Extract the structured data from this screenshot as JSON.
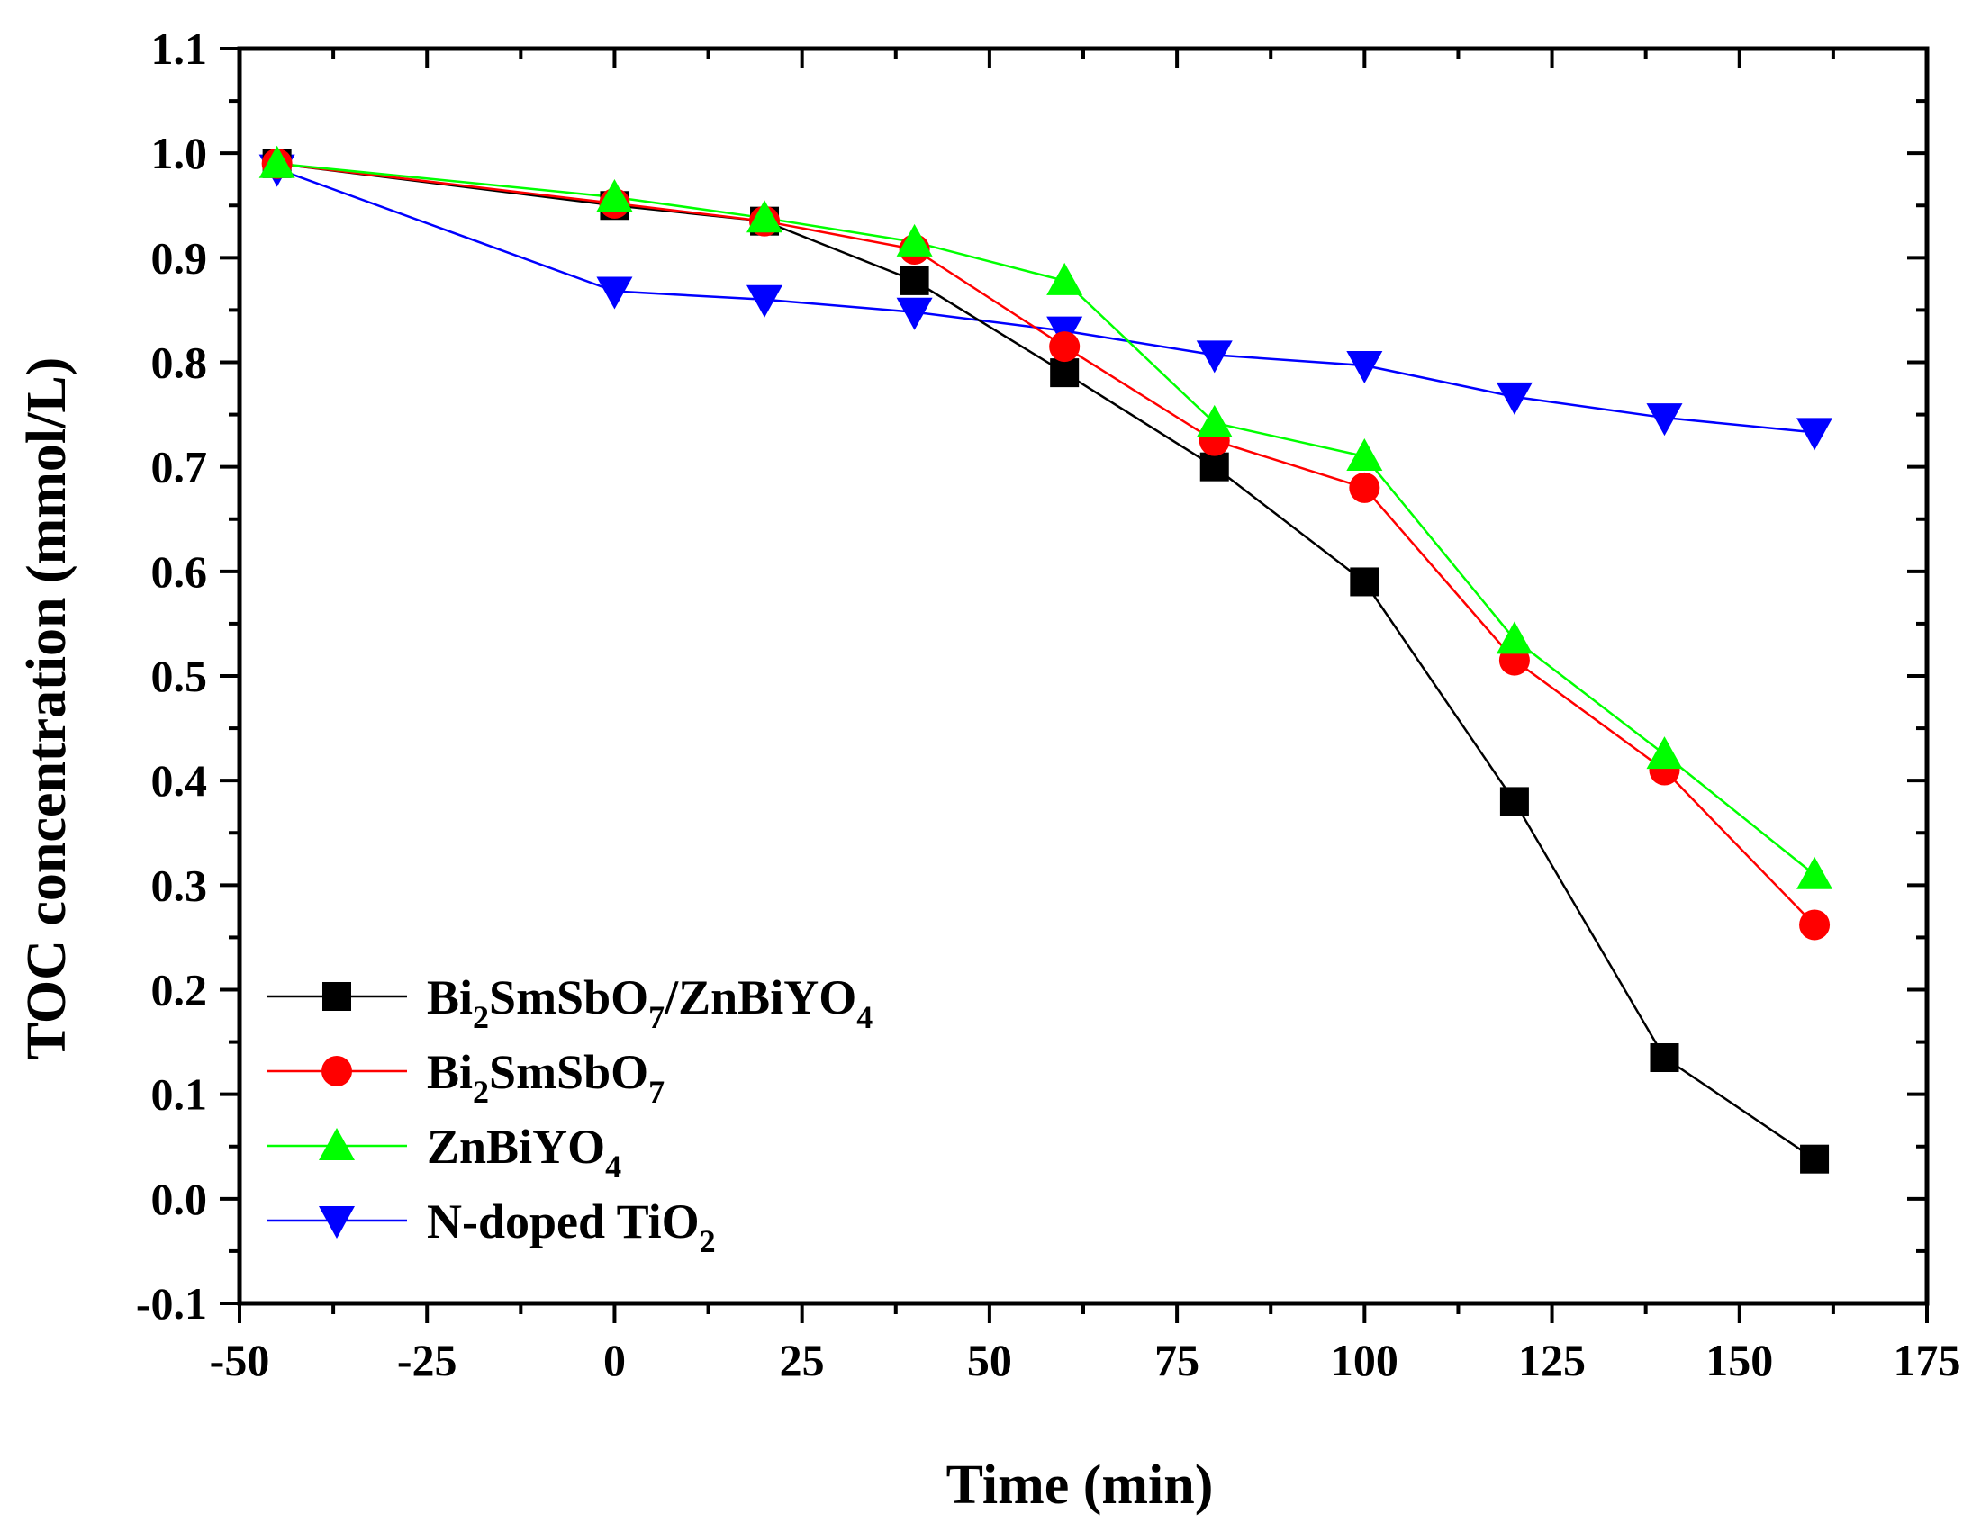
{
  "chart_data": {
    "type": "line",
    "title": "",
    "xlabel": "Time (min)",
    "ylabel": "TOC concentration (mmol/L)",
    "xlim": [
      -50,
      175
    ],
    "ylim": [
      -0.1,
      1.1
    ],
    "x_ticks": [
      "-50",
      "-25",
      "0",
      "25",
      "50",
      "75",
      "100",
      "125",
      "150",
      "175"
    ],
    "y_ticks": [
      "-0.1",
      "0.0",
      "0.1",
      "0.2",
      "0.3",
      "0.4",
      "0.5",
      "0.6",
      "0.7",
      "0.8",
      "0.9",
      "1.0",
      "1.1"
    ],
    "grid": false,
    "legend_position": "bottom-left",
    "x": [
      -45,
      0,
      20,
      40,
      60,
      80,
      100,
      120,
      140,
      160
    ],
    "series": [
      {
        "name": "Bi2SmSbO7/ZnBiYO4",
        "label_parts": [
          {
            "t": "Bi"
          },
          {
            "t": "2",
            "sub": true
          },
          {
            "t": "SmSbO"
          },
          {
            "t": "7",
            "sub": true
          },
          {
            "t": "/ZnBiYO"
          },
          {
            "t": "4",
            "sub": true
          }
        ],
        "color": "#000000",
        "marker": "square",
        "values": [
          0.99,
          0.95,
          0.935,
          0.878,
          0.79,
          0.7,
          0.59,
          0.38,
          0.135,
          0.038
        ]
      },
      {
        "name": "Bi2SmSbO7",
        "label_parts": [
          {
            "t": "Bi"
          },
          {
            "t": "2",
            "sub": true
          },
          {
            "t": "SmSbO"
          },
          {
            "t": "7",
            "sub": true
          }
        ],
        "color": "#ff0000",
        "marker": "circle",
        "values": [
          0.99,
          0.952,
          0.935,
          0.908,
          0.815,
          0.725,
          0.68,
          0.515,
          0.41,
          0.262
        ]
      },
      {
        "name": "ZnBiYO4",
        "label_parts": [
          {
            "t": "ZnBiYO"
          },
          {
            "t": "4",
            "sub": true
          }
        ],
        "color": "#00ff00",
        "marker": "triangle-up",
        "values": [
          0.99,
          0.958,
          0.938,
          0.915,
          0.878,
          0.742,
          0.71,
          0.535,
          0.425,
          0.31
        ]
      },
      {
        "name": "N-doped TiO2",
        "label_parts": [
          {
            "t": "N-doped TiO"
          },
          {
            "t": "2",
            "sub": true
          }
        ],
        "color": "#0000ff",
        "marker": "triangle-down",
        "values": [
          0.985,
          0.868,
          0.86,
          0.848,
          0.83,
          0.807,
          0.797,
          0.767,
          0.747,
          0.733
        ]
      }
    ]
  }
}
